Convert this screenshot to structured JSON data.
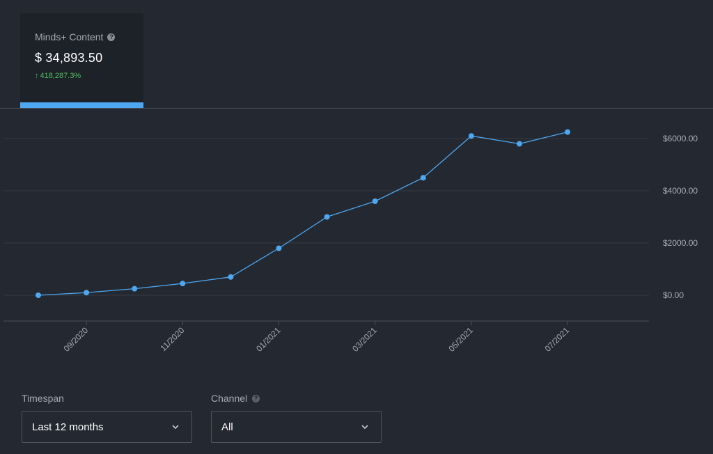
{
  "metric": {
    "label": "Minds+ Content",
    "value": "$ 34,893.50",
    "change_arrow": "↑",
    "change": "418,287.3%",
    "help_icon": "question-circle-icon",
    "accent_color": "#4ea7f1",
    "positive_color": "#53c25f"
  },
  "chart_data": {
    "type": "line",
    "x": [
      "2020-08",
      "2020-09",
      "2020-10",
      "2020-11",
      "2020-12",
      "2021-01",
      "2021-02",
      "2021-03",
      "2021-04",
      "2021-05",
      "2021-06",
      "2021-07"
    ],
    "series": [
      {
        "values": [
          0,
          100,
          250,
          450,
          700,
          1800,
          3000,
          3600,
          4500,
          6100,
          5800,
          6250
        ],
        "color": "#4ea7f1"
      }
    ],
    "x_tick_labels": [
      "09/2020",
      "11/2020",
      "01/2021",
      "03/2021",
      "05/2021",
      "07/2021"
    ],
    "y_ticks": [
      0,
      2000,
      4000,
      6000
    ],
    "y_tick_labels": [
      "$0.00",
      "$2000.00",
      "$4000.00",
      "$6000.00"
    ],
    "ylim": [
      -1000,
      7000
    ],
    "grid": true,
    "y_axis_side": "right"
  },
  "controls": {
    "timespan": {
      "label": "Timespan",
      "value": "Last 12 months"
    },
    "channel": {
      "label": "Channel",
      "value": "All",
      "help_icon": "question-circle-icon"
    }
  }
}
